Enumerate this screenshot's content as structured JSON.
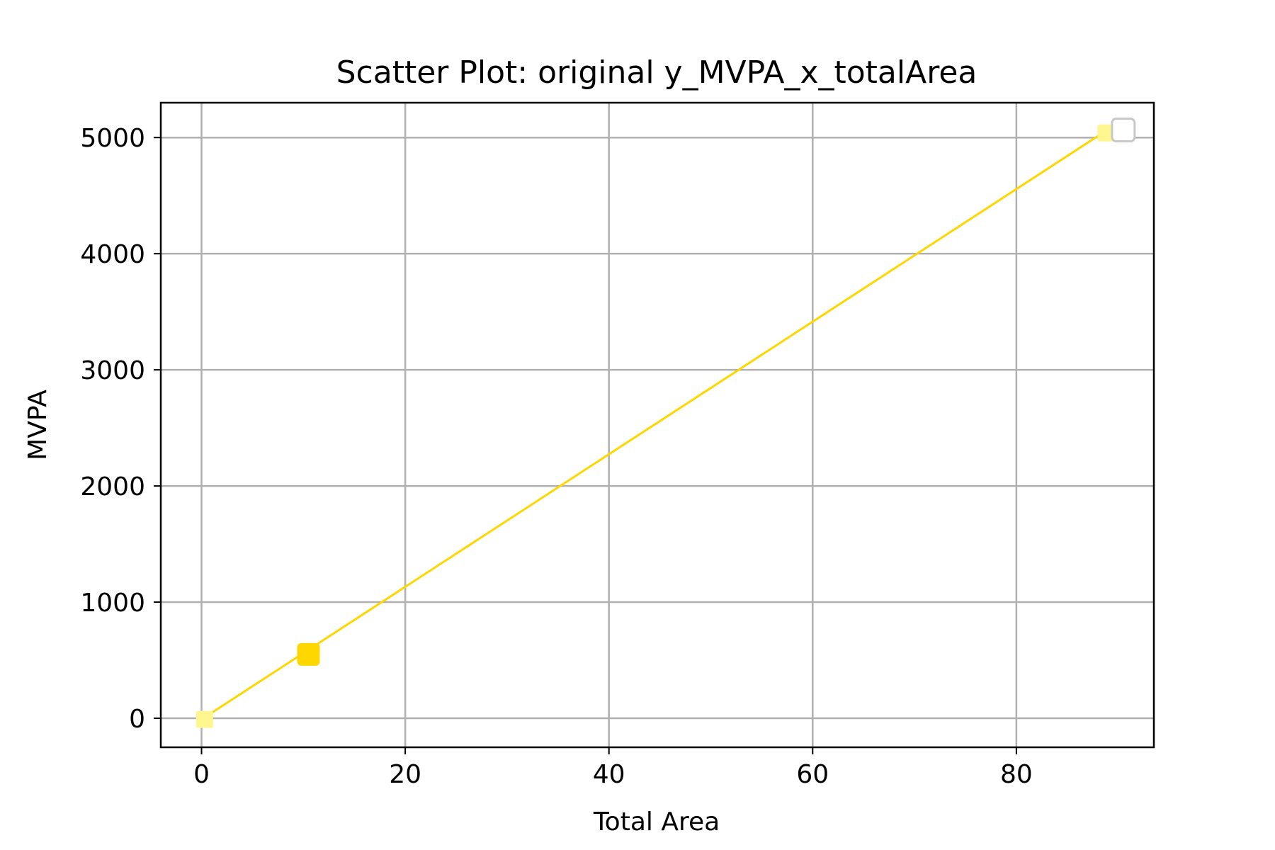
{
  "chart_data": {
    "type": "scatter",
    "title": "Scatter Plot: original y_MVPA_x_totalArea",
    "xlabel": "Total Area",
    "ylabel": "MVPA",
    "xlim": [
      -4,
      93.5
    ],
    "ylim": [
      -250,
      5300
    ],
    "xticks": [
      0,
      20,
      40,
      60,
      80
    ],
    "yticks": [
      0,
      1000,
      2000,
      3000,
      4000,
      5000
    ],
    "grid": true,
    "points": [
      {
        "x": 0.3,
        "y": -10,
        "color": "#fff68f",
        "size": "small"
      },
      {
        "x": 10.5,
        "y": 550,
        "color": "#ffd700",
        "size": "large"
      },
      {
        "x": 88.8,
        "y": 5040,
        "color": "#fff68f",
        "size": "small"
      },
      {
        "x": 90.5,
        "y": 5065,
        "color": "#ffffff",
        "edge": "#c8c8c8",
        "size": "large"
      }
    ],
    "line": {
      "x": [
        0,
        89
      ],
      "y": [
        -10,
        5070
      ],
      "color": "#ffd700"
    }
  }
}
